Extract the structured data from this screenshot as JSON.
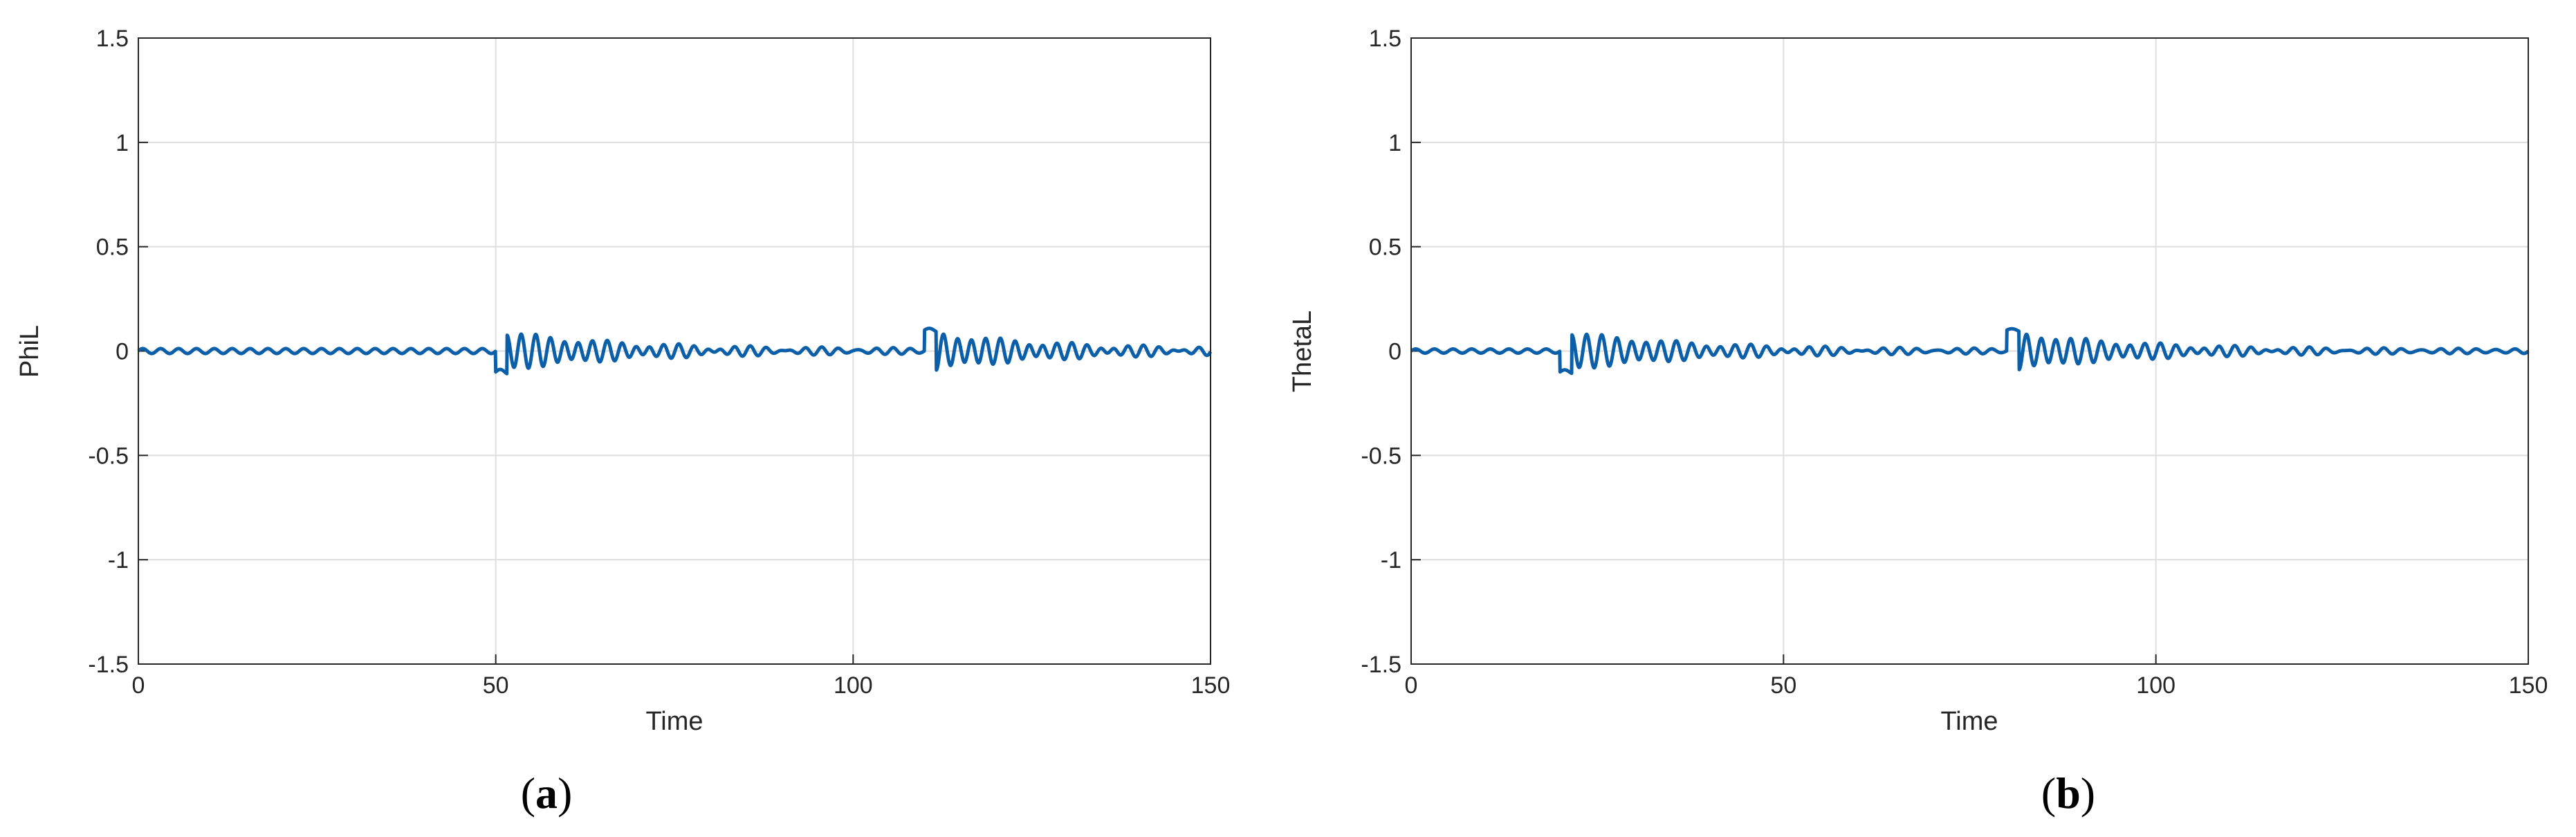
{
  "chart_data": [
    {
      "type": "line",
      "panel_label": "a",
      "xlabel": "Time",
      "ylabel": "PhiL",
      "xlim": [
        0,
        150
      ],
      "ylim": [
        -1.5,
        1.5
      ],
      "xticks": [
        0,
        50,
        100,
        150
      ],
      "yticks": [
        -1.5,
        -1,
        -0.5,
        0,
        0.5,
        1,
        1.5
      ],
      "xtick_labels": [
        "0",
        "50",
        "100",
        "150"
      ],
      "ytick_labels": [
        "-1.5",
        "-1",
        "-0.5",
        "0",
        "0.5",
        "1",
        "1.5"
      ],
      "grid": true,
      "line_color": "#0b5ea8",
      "background_ripple": {
        "amplitude": 0.012,
        "period": 2.5
      },
      "events": [
        {
          "t": 50,
          "step": -0.1,
          "step_duration": 1.6,
          "ring_amplitude": 0.085,
          "ring_period": 2.0,
          "ring_decay": 18
        },
        {
          "t": 110,
          "step": 0.1,
          "step_duration": 1.6,
          "ring_amplitude": 0.085,
          "ring_period": 2.0,
          "ring_decay": 18
        }
      ]
    },
    {
      "type": "line",
      "panel_label": "b",
      "xlabel": "Time",
      "ylabel": "ThetaL",
      "xlim": [
        0,
        150
      ],
      "ylim": [
        -1.5,
        1.5
      ],
      "xticks": [
        0,
        50,
        100,
        150
      ],
      "yticks": [
        -1.5,
        -1,
        -0.5,
        0,
        0.5,
        1,
        1.5
      ],
      "xtick_labels": [
        "0",
        "50",
        "100",
        "150"
      ],
      "ytick_labels": [
        "-1.5",
        "-1",
        "-0.5",
        "0",
        "0.5",
        "1",
        "1.5"
      ],
      "grid": true,
      "line_color": "#0b5ea8",
      "background_ripple": {
        "amplitude": 0.01,
        "period": 2.5
      },
      "events": [
        {
          "t": 20,
          "step": -0.1,
          "step_duration": 1.6,
          "ring_amplitude": 0.085,
          "ring_period": 2.0,
          "ring_decay": 18
        },
        {
          "t": 80,
          "step": 0.1,
          "step_duration": 1.6,
          "ring_amplitude": 0.085,
          "ring_period": 2.0,
          "ring_decay": 18
        }
      ]
    }
  ],
  "captions": [
    {
      "open": "(",
      "letter": "a",
      "close": ")"
    },
    {
      "open": "(",
      "letter": "b",
      "close": ")"
    }
  ]
}
